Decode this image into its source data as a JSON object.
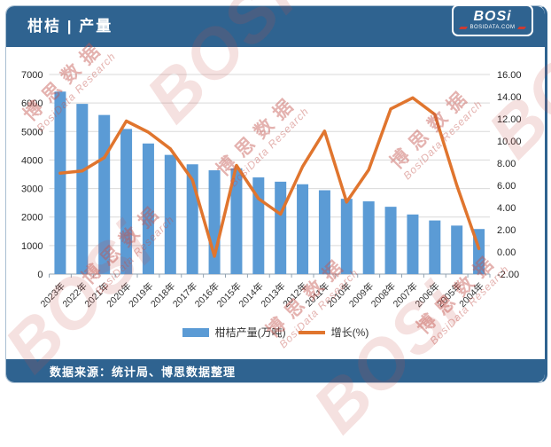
{
  "header": {
    "title": "柑桔 | 产量",
    "logo": {
      "name": "BOSi",
      "domain": "BOSIDATA.COM"
    }
  },
  "chart_data": {
    "type": "bar",
    "title": "柑桔 | 产量",
    "categories": [
      "2023年",
      "2022年",
      "2021年",
      "2020年",
      "2019年",
      "2018年",
      "2017年",
      "2016年",
      "2015年",
      "2014年",
      "2013年",
      "2012年",
      "2011年",
      "2010年",
      "2009年",
      "2008年",
      "2007年",
      "2006年",
      "2005年",
      "2004年"
    ],
    "series": [
      {
        "name": "柑桔产量(万吨)",
        "type": "bar",
        "axis": "left",
        "color": "#5b9bd5",
        "values": [
          6400,
          5970,
          5580,
          5090,
          4580,
          4180,
          3850,
          3640,
          3710,
          3390,
          3240,
          3150,
          2940,
          2640,
          2550,
          2360,
          2090,
          1880,
          1700,
          1580
        ]
      },
      {
        "name": "增长(%)",
        "type": "line",
        "axis": "right",
        "color": "#e0752e",
        "values": [
          7.1,
          7.3,
          8.5,
          11.8,
          10.8,
          9.3,
          6.5,
          -0.4,
          7.8,
          4.8,
          3.4,
          7.7,
          10.9,
          4.5,
          7.4,
          12.9,
          13.9,
          12.4,
          6.0,
          0.3
        ]
      }
    ],
    "left_axis": {
      "min": 0,
      "max": 7000,
      "step": 1000,
      "labels": [
        "0",
        "1000",
        "2000",
        "3000",
        "4000",
        "5000",
        "6000",
        "7000"
      ]
    },
    "right_axis": {
      "min": -2,
      "max": 16,
      "step": 2,
      "labels": [
        "-2.00",
        "0.00",
        "2.00",
        "4.00",
        "6.00",
        "8.00",
        "10.00",
        "12.00",
        "14.00",
        "16.00"
      ]
    },
    "grid": true,
    "legend_position": "bottom"
  },
  "legend": {
    "bar_label": "柑桔产量(万吨)",
    "line_label": "增长(%)"
  },
  "footer": {
    "source": "数据来源：统计局、博思数据整理"
  },
  "watermark": {
    "logo": "BOSi",
    "cn": "博思数据",
    "en": "BosiData Research"
  },
  "colors": {
    "header_bg": "#2f6390",
    "bar": "#5b9bd5",
    "line": "#e0752e",
    "grid": "#d9d9d9",
    "axis_text": "#262626",
    "watermark": "#c4544e"
  }
}
